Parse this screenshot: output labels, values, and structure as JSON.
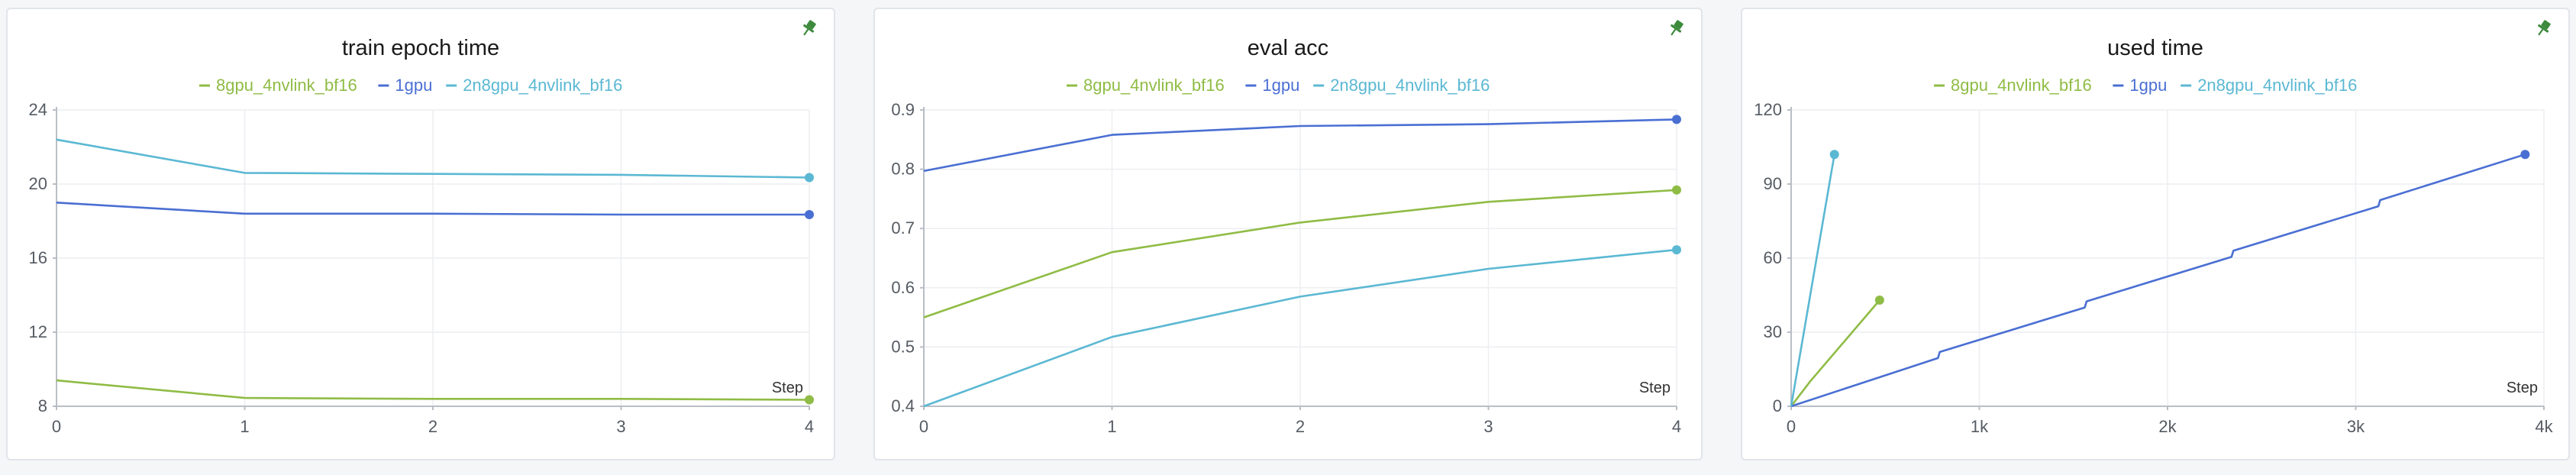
{
  "colors": {
    "8gpu_4nvlink_bf16": "#8fbc45",
    "1gpu": "#4a6fd3",
    "2n8gpu_4nvlink_bf16": "#5bb8d3",
    "pin": "#3d8a3d"
  },
  "pin_icon": "pin-icon",
  "chart_data": [
    {
      "type": "line",
      "title": "train epoch time",
      "xlabel": "Step",
      "ylabel": "",
      "xlim": [
        0,
        4
      ],
      "ylim": [
        8,
        24
      ],
      "xticks": [
        0,
        1,
        2,
        3,
        4
      ],
      "xtick_labels": [
        "0",
        "1",
        "2",
        "3",
        "4"
      ],
      "yticks": [
        8,
        12,
        16,
        20,
        24
      ],
      "ytick_labels": [
        "8",
        "12",
        "16",
        "20",
        "24"
      ],
      "legend": [
        "8gpu_4nvlink_bf16",
        "1gpu",
        "2n8gpu_4nvlink_bf16"
      ],
      "grid": true,
      "series": [
        {
          "name": "8gpu_4nvlink_bf16",
          "x": [
            0,
            1,
            2,
            3,
            4
          ],
          "y": [
            9.4,
            8.45,
            8.4,
            8.4,
            8.35
          ]
        },
        {
          "name": "1gpu",
          "x": [
            0,
            1,
            2,
            3,
            4
          ],
          "y": [
            19.0,
            18.4,
            18.4,
            18.35,
            18.35
          ]
        },
        {
          "name": "2n8gpu_4nvlink_bf16",
          "x": [
            0,
            1,
            2,
            3,
            4
          ],
          "y": [
            22.4,
            20.6,
            20.55,
            20.5,
            20.35
          ]
        }
      ]
    },
    {
      "type": "line",
      "title": "eval acc",
      "xlabel": "Step",
      "ylabel": "",
      "xlim": [
        0,
        4
      ],
      "ylim": [
        0.4,
        0.9
      ],
      "xticks": [
        0,
        1,
        2,
        3,
        4
      ],
      "xtick_labels": [
        "0",
        "1",
        "2",
        "3",
        "4"
      ],
      "yticks": [
        0.4,
        0.5,
        0.6,
        0.7,
        0.8,
        0.9
      ],
      "ytick_labels": [
        "0.4",
        "0.5",
        "0.6",
        "0.7",
        "0.8",
        "0.9"
      ],
      "legend": [
        "8gpu_4nvlink_bf16",
        "1gpu",
        "2n8gpu_4nvlink_bf16"
      ],
      "grid": true,
      "series": [
        {
          "name": "8gpu_4nvlink_bf16",
          "x": [
            0,
            1,
            2,
            3,
            4
          ],
          "y": [
            0.55,
            0.66,
            0.71,
            0.745,
            0.765
          ]
        },
        {
          "name": "1gpu",
          "x": [
            0,
            1,
            2,
            3,
            4
          ],
          "y": [
            0.797,
            0.858,
            0.873,
            0.876,
            0.884
          ]
        },
        {
          "name": "2n8gpu_4nvlink_bf16",
          "x": [
            0,
            1,
            2,
            3,
            4
          ],
          "y": [
            0.4,
            0.517,
            0.585,
            0.632,
            0.664
          ]
        }
      ]
    },
    {
      "type": "line",
      "title": "used time",
      "xlabel": "Step",
      "ylabel": "",
      "xlim": [
        0,
        4000
      ],
      "ylim": [
        0,
        120
      ],
      "xticks": [
        0,
        1000,
        2000,
        3000,
        4000
      ],
      "xtick_labels": [
        "0",
        "1k",
        "2k",
        "3k",
        "4k"
      ],
      "yticks": [
        0,
        30,
        60,
        90,
        120
      ],
      "ytick_labels": [
        "0",
        "30",
        "60",
        "90",
        "120"
      ],
      "legend": [
        "8gpu_4nvlink_bf16",
        "1gpu",
        "2n8gpu_4nvlink_bf16"
      ],
      "grid": true,
      "series": [
        {
          "name": "8gpu_4nvlink_bf16",
          "x": [
            0,
            100,
            470
          ],
          "y": [
            0,
            10,
            43
          ]
        },
        {
          "name": "1gpu",
          "x": [
            0,
            780,
            790,
            1560,
            1570,
            2340,
            2350,
            3120,
            3130,
            3900
          ],
          "y": [
            0,
            19.5,
            22,
            40,
            42.5,
            60.5,
            63,
            81,
            83.5,
            102
          ]
        },
        {
          "name": "2n8gpu_4nvlink_bf16",
          "x": [
            0,
            230
          ],
          "y": [
            0,
            102
          ]
        }
      ]
    }
  ]
}
